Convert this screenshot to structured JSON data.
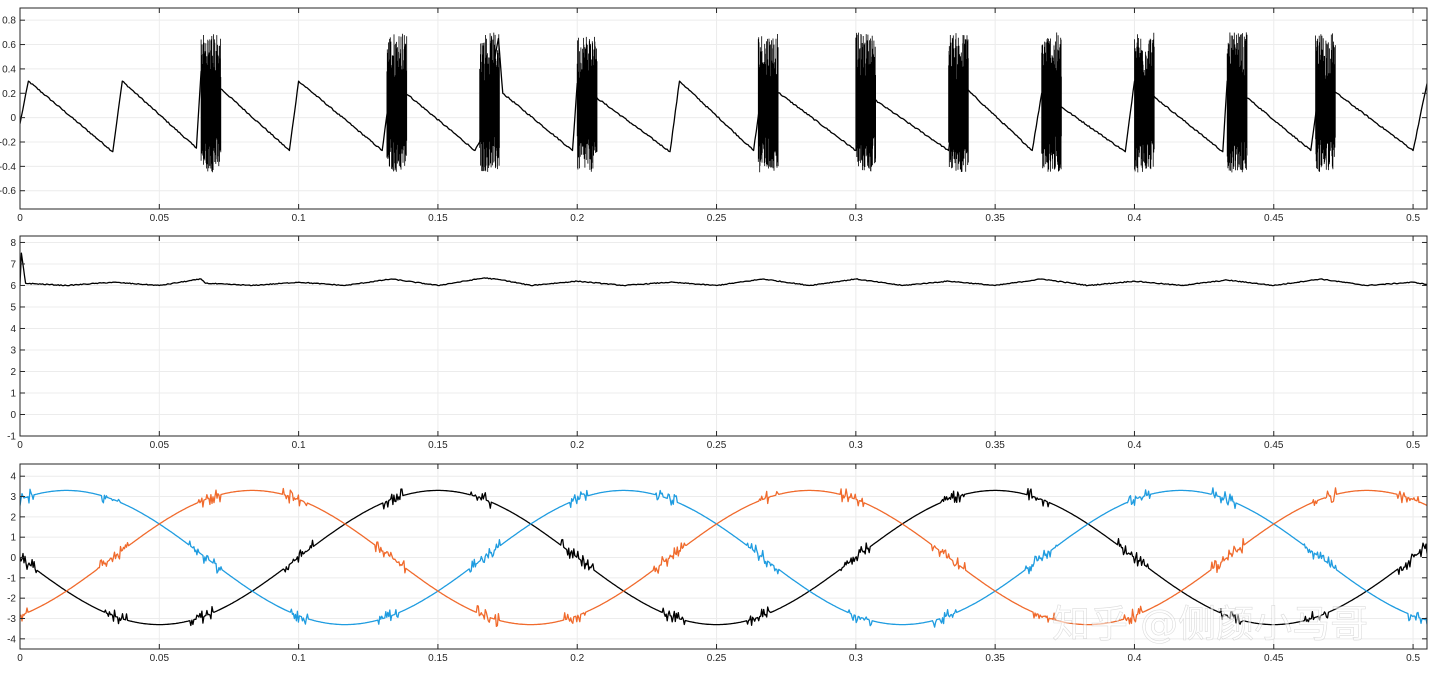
{
  "watermark": "知乎 @侧颜小马哥",
  "chart_data": [
    {
      "type": "line",
      "title": "",
      "xlabel": "",
      "ylabel": "",
      "xlim": [
        0,
        0.505
      ],
      "ylim": [
        -0.75,
        0.9
      ],
      "xticks": [
        0,
        0.05,
        0.1,
        0.15,
        0.2,
        0.25,
        0.3,
        0.35,
        0.4,
        0.45,
        0.5
      ],
      "xtick_labels": [
        "0",
        "0.05",
        "0.1",
        "0.15",
        "0.2",
        "0.25",
        "0.3",
        "0.35",
        "0.4",
        "0.45",
        "0.5"
      ],
      "yticks": [
        -0.6,
        -0.4,
        -0.2,
        0,
        0.2,
        0.4,
        0.6,
        0.8
      ],
      "ytick_labels": [
        "-0.6",
        "-0.4",
        "-0.2",
        "0",
        "0.2",
        "0.4",
        "0.6",
        "0.8"
      ],
      "grid": true,
      "series": [
        {
          "color": "#000000",
          "x": [
            0,
            0.003,
            0.0333,
            0.0367,
            0.0633,
            0.065,
            0.0683,
            0.07,
            0.0967,
            0.1,
            0.13,
            0.1333,
            0.1633,
            0.165,
            0.1717,
            0.1733,
            0.1983,
            0.2,
            0.2333,
            0.2367,
            0.2633,
            0.2667,
            0.3,
            0.3033,
            0.3333,
            0.3367,
            0.3633,
            0.3667,
            0.3967,
            0.4,
            0.4317,
            0.4333,
            0.4633,
            0.4667,
            0.5,
            0.505
          ],
          "y": [
            -0.05,
            0.3,
            -0.28,
            0.3,
            -0.25,
            0.38,
            -0.15,
            0.28,
            -0.27,
            0.3,
            -0.27,
            0.3,
            -0.27,
            -0.2,
            0.65,
            0.2,
            -0.27,
            0.28,
            -0.28,
            0.3,
            -0.27,
            0.3,
            -0.27,
            0.2,
            -0.27,
            0.3,
            -0.27,
            0.2,
            -0.28,
            0.3,
            -0.28,
            0.3,
            -0.27,
            0.3,
            -0.27,
            0.28
          ]
        }
      ]
    },
    {
      "type": "line",
      "title": "",
      "xlabel": "",
      "ylabel": "",
      "xlim": [
        0,
        0.505
      ],
      "ylim": [
        -1,
        8.3
      ],
      "xticks": [
        0,
        0.05,
        0.1,
        0.15,
        0.2,
        0.25,
        0.3,
        0.35,
        0.4,
        0.45,
        0.5
      ],
      "xtick_labels": [
        "0",
        "0.05",
        "0.1",
        "0.15",
        "0.2",
        "0.25",
        "0.3",
        "0.35",
        "0.4",
        "0.45",
        "0.5"
      ],
      "yticks": [
        -1,
        0,
        1,
        2,
        3,
        4,
        5,
        6,
        7,
        8
      ],
      "ytick_labels": [
        "-1",
        "0",
        "1",
        "2",
        "3",
        "4",
        "5",
        "6",
        "7",
        "8"
      ],
      "grid": true,
      "series": [
        {
          "color": "#000000",
          "x": [
            0,
            0.0005,
            0.002,
            0.0167,
            0.0333,
            0.05,
            0.065,
            0.0667,
            0.0833,
            0.1,
            0.1167,
            0.1333,
            0.15,
            0.1667,
            0.1733,
            0.1833,
            0.2,
            0.2167,
            0.2333,
            0.25,
            0.2667,
            0.2833,
            0.3,
            0.3167,
            0.3333,
            0.35,
            0.3667,
            0.3833,
            0.4,
            0.4167,
            0.4333,
            0.45,
            0.4667,
            0.4833,
            0.5,
            0.505
          ],
          "y": [
            6.0,
            7.5,
            6.1,
            6.0,
            6.15,
            6.0,
            6.3,
            6.1,
            6.0,
            6.15,
            6.0,
            6.3,
            6.0,
            6.35,
            6.25,
            6.0,
            6.2,
            6.0,
            6.15,
            6.0,
            6.3,
            6.0,
            6.3,
            6.0,
            6.2,
            6.0,
            6.3,
            6.0,
            6.2,
            6.0,
            6.25,
            6.0,
            6.3,
            6.0,
            6.15,
            6.05
          ]
        }
      ]
    },
    {
      "type": "line",
      "title": "",
      "xlabel": "",
      "ylabel": "",
      "xlim": [
        0,
        0.505
      ],
      "ylim": [
        -4.5,
        4.6
      ],
      "xticks": [
        0,
        0.05,
        0.1,
        0.15,
        0.2,
        0.25,
        0.3,
        0.35,
        0.4,
        0.45,
        0.5
      ],
      "xtick_labels": [
        "0",
        "0.05",
        "0.1",
        "0.15",
        "0.2",
        "0.25",
        "0.3",
        "0.35",
        "0.4",
        "0.45",
        "0.5"
      ],
      "yticks": [
        -4,
        -3,
        -2,
        -1,
        0,
        1,
        2,
        3,
        4
      ],
      "ytick_labels": [
        "-4",
        "-3",
        "-2",
        "-1",
        "0",
        "1",
        "2",
        "3",
        "4"
      ],
      "grid": true,
      "series": [
        {
          "color": "#000000",
          "amplitude": 3.3,
          "period": 0.2,
          "phase_deg": 180,
          "x": [
            0,
            0.0167,
            0.0333,
            0.05,
            0.0667,
            0.0833,
            0.1,
            0.1167,
            0.1333,
            0.15,
            0.1667,
            0.1833,
            0.2,
            0.2167,
            0.2333,
            0.25,
            0.2667,
            0.2833,
            0.3,
            0.3167,
            0.3333,
            0.35,
            0.3667,
            0.3833,
            0.4,
            0.4167,
            0.4333,
            0.45,
            0.4667,
            0.4833,
            0.5,
            0.505
          ],
          "y": [
            0,
            -1.65,
            -2.86,
            -3.3,
            -2.86,
            -1.65,
            0,
            1.65,
            2.86,
            3.3,
            2.86,
            1.65,
            0,
            -1.65,
            -2.86,
            -3.3,
            -2.86,
            -1.65,
            0,
            1.65,
            2.86,
            3.3,
            2.86,
            1.65,
            0,
            -1.65,
            -2.86,
            -3.3,
            -2.86,
            -1.65,
            0,
            0.52
          ]
        },
        {
          "color": "#1f9ce0",
          "amplitude": 3.3,
          "period": 0.2,
          "phase_deg": 60,
          "x": [
            0,
            0.0167,
            0.0333,
            0.05,
            0.0667,
            0.0833,
            0.1,
            0.1167,
            0.1333,
            0.15,
            0.1667,
            0.1833,
            0.2,
            0.2167,
            0.2333,
            0.25,
            0.2667,
            0.2833,
            0.3,
            0.3167,
            0.3333,
            0.35,
            0.3667,
            0.3833,
            0.4,
            0.4167,
            0.4333,
            0.45,
            0.4667,
            0.4833,
            0.5,
            0.505
          ],
          "y": [
            2.86,
            3.3,
            2.86,
            1.65,
            0,
            -1.65,
            -2.86,
            -3.3,
            -2.86,
            -1.65,
            0,
            1.65,
            2.86,
            3.3,
            2.86,
            1.65,
            0,
            -1.65,
            -2.86,
            -3.3,
            -2.86,
            -1.65,
            0,
            1.65,
            2.86,
            3.3,
            2.86,
            1.65,
            0,
            -1.65,
            -2.86,
            -3.0
          ]
        },
        {
          "color": "#f06a2c",
          "amplitude": 3.3,
          "period": 0.2,
          "phase_deg": -60,
          "x": [
            0,
            0.0167,
            0.0333,
            0.05,
            0.0667,
            0.0833,
            0.1,
            0.1167,
            0.1333,
            0.15,
            0.1667,
            0.1833,
            0.2,
            0.2167,
            0.2333,
            0.25,
            0.2667,
            0.2833,
            0.3,
            0.3167,
            0.3333,
            0.35,
            0.3667,
            0.3833,
            0.4,
            0.4167,
            0.4333,
            0.45,
            0.4667,
            0.4833,
            0.5,
            0.505
          ],
          "y": [
            -2.86,
            -1.65,
            0,
            1.65,
            2.86,
            3.3,
            2.86,
            1.65,
            0,
            -1.65,
            -2.86,
            -3.3,
            -2.86,
            -1.65,
            0,
            1.65,
            2.86,
            3.3,
            2.86,
            1.65,
            0,
            -1.65,
            -2.86,
            -3.3,
            -2.86,
            -1.65,
            0,
            1.65,
            2.86,
            3.3,
            2.86,
            2.62
          ]
        }
      ]
    }
  ]
}
